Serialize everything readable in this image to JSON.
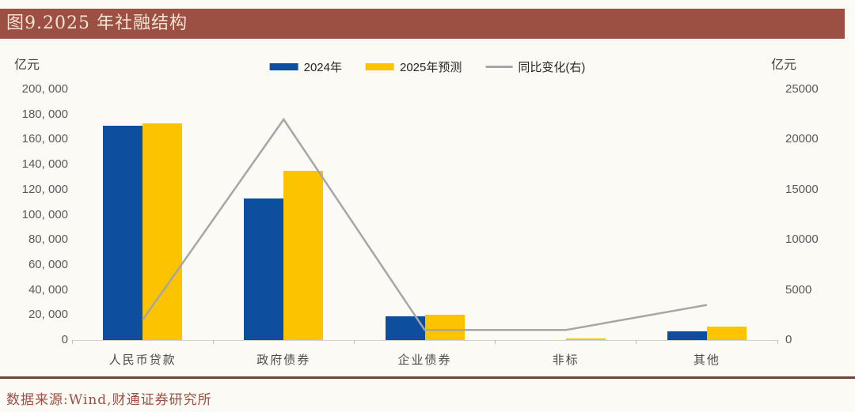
{
  "title": "图9.2025 年社融结构",
  "source": "数据来源:Wind,财通证券研究所",
  "colors": {
    "titlebar_bg": "#9C4F43",
    "titlebar_text": "#F2E4D3",
    "bar_2024": "#0D4E9E",
    "bar_2025": "#FBC300",
    "yoy_line": "#A6A6A6",
    "divider": "#744139",
    "source_text": "#9C4F43",
    "axis_text": "#595959",
    "page_bg": "#FCFAF5"
  },
  "left_axis": {
    "unit": "亿元",
    "ticks": [
      "200, 000",
      "180, 000",
      "160, 000",
      "140, 000",
      "120, 000",
      "100, 000",
      "80, 000",
      "60, 000",
      "40, 000",
      "20, 000",
      "0"
    ]
  },
  "right_axis": {
    "unit": "亿元",
    "ticks": [
      "25000",
      "20000",
      "15000",
      "10000",
      "5000",
      "0"
    ]
  },
  "legend": [
    {
      "label": "2024年",
      "marker": "swatch",
      "color": "#0D4E9E"
    },
    {
      "label": "2025年预测",
      "marker": "swatch",
      "color": "#FBC300"
    },
    {
      "label": "同比变化(右)",
      "marker": "line",
      "color": "#A6A6A6"
    }
  ],
  "chart_data": {
    "type": "bar",
    "subtype": "grouped-bars-with-line",
    "title": "图9.2025 年社融结构",
    "categories": [
      "人民币贷款",
      "政府债券",
      "企业债券",
      "非标",
      "其他"
    ],
    "category_slugs": [
      "rmb-loans",
      "gov-bonds",
      "corp-bonds",
      "non-standard",
      "other"
    ],
    "series": [
      {
        "name": "2024年",
        "slug": "2024",
        "type": "bar",
        "axis": "left",
        "color": "#0D4E9E",
        "values": [
          171000,
          113000,
          19000,
          0,
          7000
        ]
      },
      {
        "name": "2025年预测",
        "slug": "2025-forecast",
        "type": "bar",
        "axis": "left",
        "color": "#FBC300",
        "values": [
          173000,
          135000,
          20000,
          1000,
          10500
        ]
      },
      {
        "name": "同比变化(右)",
        "slug": "yoy-change",
        "type": "line",
        "axis": "right",
        "color": "#A6A6A6",
        "values": [
          2000,
          22000,
          1000,
          1000,
          3500
        ]
      }
    ],
    "left_ylabel": "亿元",
    "right_ylabel": "亿元",
    "left_ylim": [
      0,
      200000
    ],
    "right_ylim": [
      0,
      25000
    ],
    "grid": false,
    "legend_position": "top"
  }
}
